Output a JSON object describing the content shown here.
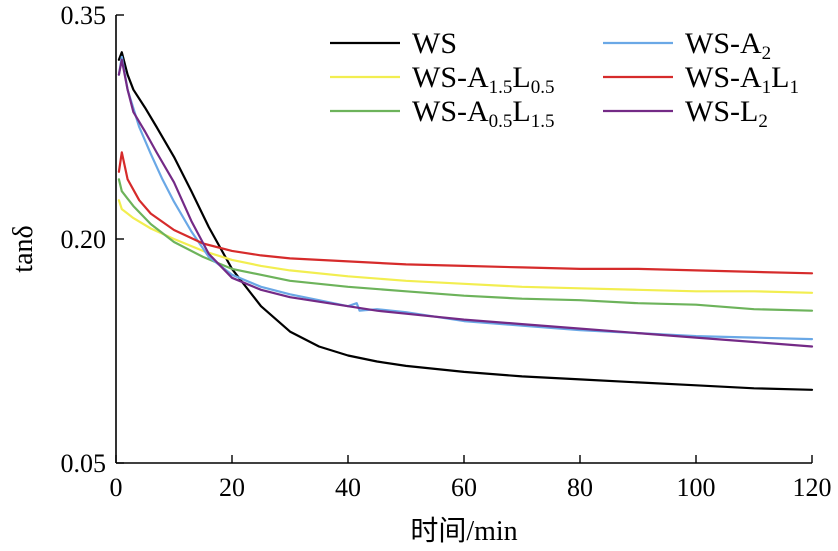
{
  "chart_data": {
    "type": "line",
    "title": "",
    "xlabel": "时间/min",
    "ylabel": "tanδ",
    "xlim": [
      0,
      120
    ],
    "ylim": [
      0.05,
      0.35
    ],
    "xticks": [
      0,
      20,
      40,
      60,
      80,
      100,
      120
    ],
    "xtick_labels": [
      "0",
      "20",
      "40",
      "60",
      "80",
      "100",
      "120"
    ],
    "yticks": [
      0.05,
      0.2,
      0.35
    ],
    "ytick_labels": [
      "0.05",
      "0.20",
      "0.35"
    ],
    "grid": false,
    "legend_position": "top-right",
    "series": [
      {
        "name": "WS",
        "label_parts": [
          [
            "WS",
            ""
          ]
        ],
        "color": "#000000",
        "x": [
          0.5,
          1,
          2,
          3,
          5,
          7,
          10,
          13,
          16,
          20,
          25,
          30,
          35,
          40,
          45,
          50,
          60,
          70,
          80,
          90,
          100,
          110,
          120
        ],
        "y": [
          0.32,
          0.325,
          0.31,
          0.3,
          0.288,
          0.275,
          0.255,
          0.232,
          0.208,
          0.18,
          0.155,
          0.138,
          0.128,
          0.122,
          0.118,
          0.115,
          0.111,
          0.108,
          0.106,
          0.104,
          0.102,
          0.1,
          0.099
        ]
      },
      {
        "name": "WS-A1.5L0.5",
        "label_parts": [
          [
            "WS-A",
            ""
          ],
          [
            "1.5",
            "sub"
          ],
          [
            "L",
            ""
          ],
          [
            "0.5",
            "sub"
          ]
        ],
        "color": "#f2ee50",
        "x": [
          0.5,
          1,
          3,
          6,
          10,
          15,
          20,
          25,
          30,
          40,
          50,
          60,
          70,
          80,
          90,
          100,
          110,
          120
        ],
        "y": [
          0.226,
          0.22,
          0.214,
          0.207,
          0.2,
          0.192,
          0.186,
          0.182,
          0.179,
          0.175,
          0.172,
          0.17,
          0.168,
          0.167,
          0.166,
          0.165,
          0.165,
          0.164
        ]
      },
      {
        "name": "WS-A0.5L1.5",
        "label_parts": [
          [
            "WS-A",
            ""
          ],
          [
            "0.5",
            "sub"
          ],
          [
            "L",
            ""
          ],
          [
            "1.5",
            "sub"
          ]
        ],
        "color": "#6db35b",
        "x": [
          0.5,
          1,
          3,
          6,
          10,
          15,
          20,
          25,
          30,
          40,
          50,
          60,
          70,
          80,
          90,
          100,
          110,
          120
        ],
        "y": [
          0.24,
          0.232,
          0.222,
          0.21,
          0.198,
          0.188,
          0.18,
          0.176,
          0.172,
          0.168,
          0.165,
          0.162,
          0.16,
          0.159,
          0.157,
          0.156,
          0.153,
          0.152
        ]
      },
      {
        "name": "WS-A2",
        "label_parts": [
          [
            "WS-A",
            ""
          ],
          [
            "2",
            "sub"
          ]
        ],
        "color": "#6aa8e6",
        "x": [
          0.5,
          1,
          2,
          4,
          6,
          8,
          10,
          13,
          16,
          20,
          25,
          30,
          35,
          40,
          41.5,
          42,
          45,
          50,
          60,
          70,
          80,
          90,
          100,
          110,
          120
        ],
        "y": [
          0.31,
          0.322,
          0.3,
          0.275,
          0.257,
          0.24,
          0.225,
          0.205,
          0.188,
          0.176,
          0.168,
          0.163,
          0.159,
          0.155,
          0.157,
          0.152,
          0.153,
          0.151,
          0.145,
          0.142,
          0.139,
          0.137,
          0.135,
          0.134,
          0.133
        ]
      },
      {
        "name": "WS-A1L1",
        "label_parts": [
          [
            "WS-A",
            ""
          ],
          [
            "1",
            "sub"
          ],
          [
            "L",
            ""
          ],
          [
            "1",
            "sub"
          ]
        ],
        "color": "#d62b2b",
        "x": [
          0.5,
          1,
          2,
          4,
          6,
          10,
          15,
          20,
          25,
          30,
          40,
          50,
          60,
          70,
          80,
          90,
          100,
          110,
          120
        ],
        "y": [
          0.245,
          0.258,
          0.24,
          0.226,
          0.217,
          0.206,
          0.197,
          0.192,
          0.189,
          0.187,
          0.185,
          0.183,
          0.182,
          0.181,
          0.18,
          0.18,
          0.179,
          0.178,
          0.177
        ]
      },
      {
        "name": "WS-L2",
        "label_parts": [
          [
            "WS-L",
            ""
          ],
          [
            "2",
            "sub"
          ]
        ],
        "color": "#742a86",
        "x": [
          0.5,
          1,
          2,
          3,
          5,
          7,
          10,
          13,
          16,
          20,
          25,
          30,
          35,
          40,
          45,
          50,
          60,
          70,
          80,
          90,
          100,
          110,
          120
        ],
        "y": [
          0.31,
          0.32,
          0.3,
          0.285,
          0.272,
          0.258,
          0.238,
          0.212,
          0.19,
          0.174,
          0.166,
          0.161,
          0.158,
          0.155,
          0.152,
          0.15,
          0.146,
          0.143,
          0.14,
          0.137,
          0.134,
          0.131,
          0.128
        ]
      }
    ]
  }
}
